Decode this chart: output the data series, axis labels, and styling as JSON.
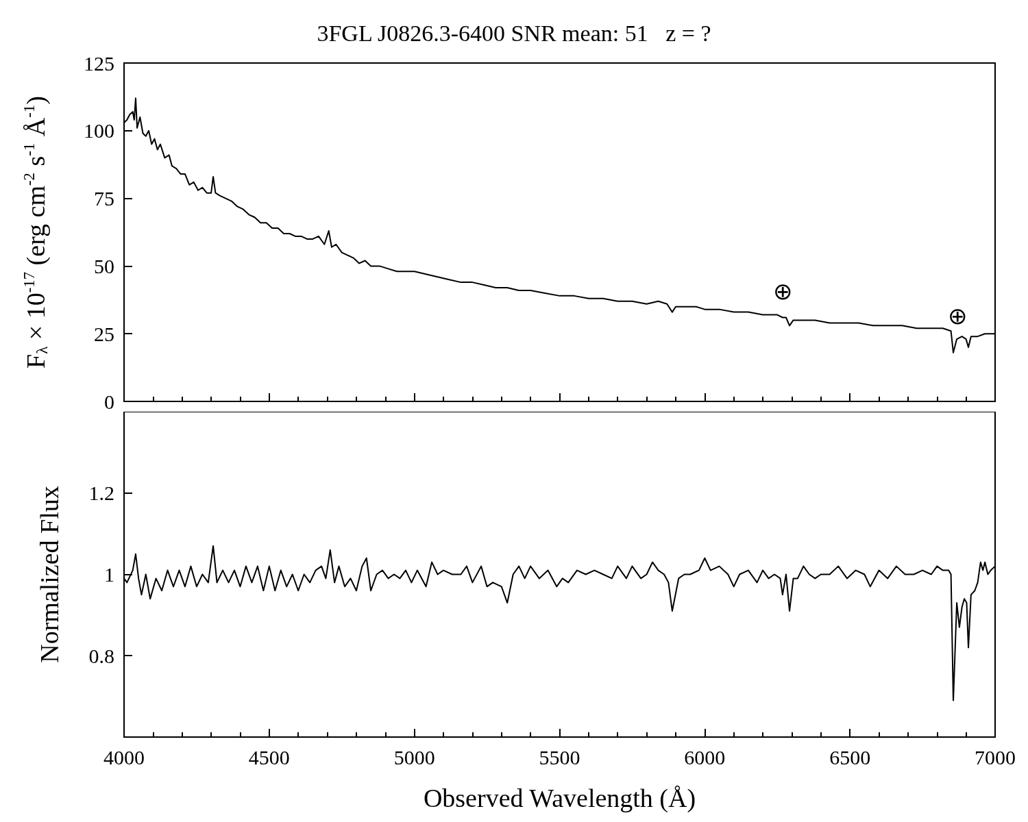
{
  "chart_data": [
    {
      "type": "line",
      "title": "3FGL J0826.3-6400 SNR mean: 51   z = ?",
      "ylabel": "F$_{λ}$ × 10$^{-17}$ (erg cm$^{-2}$ s$^{-1}$ Å$^{-1}$)",
      "xlim": [
        4000,
        7000
      ],
      "xticks": [
        4000,
        4500,
        5000,
        5500,
        6000,
        6500,
        7000
      ],
      "ylim": [
        0,
        125
      ],
      "yticks": [
        0,
        25,
        50,
        75,
        100,
        125
      ],
      "tick_labels": "y",
      "grid": false,
      "marker": "none",
      "line_style": "solid",
      "annotations": [
        "⊕",
        "⊕"
      ],
      "series": [
        {
          "color": "#000000",
          "x": [
            4000,
            4010,
            4020,
            4030,
            4035,
            4040,
            4045,
            4055,
            4065,
            4075,
            4085,
            4095,
            4105,
            4115,
            4125,
            4140,
            4155,
            4165,
            4180,
            4195,
            4210,
            4225,
            4240,
            4255,
            4270,
            4285,
            4300,
            4307,
            4315,
            4330,
            4350,
            4370,
            4390,
            4410,
            4430,
            4450,
            4470,
            4490,
            4510,
            4530,
            4550,
            4570,
            4590,
            4610,
            4630,
            4650,
            4670,
            4690,
            4705,
            4715,
            4730,
            4750,
            4770,
            4790,
            4810,
            4830,
            4850,
            4880,
            4910,
            4940,
            4970,
            5000,
            5040,
            5080,
            5120,
            5160,
            5200,
            5240,
            5280,
            5320,
            5360,
            5400,
            5450,
            5500,
            5550,
            5600,
            5650,
            5700,
            5750,
            5800,
            5840,
            5870,
            5888,
            5900,
            5930,
            5970,
            6000,
            6050,
            6100,
            6150,
            6200,
            6250,
            6268,
            6280,
            6292,
            6305,
            6330,
            6380,
            6430,
            6480,
            6530,
            6580,
            6630,
            6680,
            6730,
            6780,
            6820,
            6848,
            6856,
            6868,
            6886,
            6900,
            6908,
            6917,
            6940,
            6965,
            7000
          ],
          "values": [
            103,
            104,
            106,
            107,
            104,
            112,
            101,
            105,
            99,
            98,
            100,
            95,
            97,
            93,
            95,
            90,
            91,
            87,
            86,
            84,
            84,
            80,
            81,
            78,
            79,
            77,
            77,
            83,
            77,
            76,
            75,
            74,
            72,
            71,
            69,
            68,
            66,
            66,
            64,
            64,
            62,
            62,
            61,
            61,
            60,
            60,
            61,
            58,
            63,
            57,
            58,
            55,
            54,
            53,
            51,
            52,
            50,
            50,
            49,
            48,
            48,
            48,
            47,
            46,
            45,
            44,
            44,
            43,
            42,
            42,
            41,
            41,
            40,
            39,
            39,
            38,
            38,
            37,
            37,
            36,
            37,
            36,
            33,
            35,
            35,
            35,
            34,
            34,
            33,
            33,
            32,
            32,
            31,
            31,
            28,
            30,
            30,
            30,
            29,
            29,
            29,
            28,
            28,
            28,
            27,
            27,
            27,
            26,
            18,
            23,
            24,
            23,
            20,
            24,
            24,
            25,
            25
          ]
        }
      ]
    },
    {
      "type": "line",
      "xlabel": "Observed Wavelength (Å)",
      "ylabel": "Normalized Flux",
      "xlim": [
        4000,
        7000
      ],
      "xticks": [
        4000,
        4500,
        5000,
        5500,
        6000,
        6500,
        7000
      ],
      "ylim": [
        0.6,
        1.4
      ],
      "yticks": [
        0.8,
        1,
        1.2
      ],
      "grid": false,
      "marker": "none",
      "line_style": "solid",
      "series": [
        {
          "color": "#000000",
          "x": [
            4000,
            4010,
            4030,
            4040,
            4050,
            4060,
            4075,
            4090,
            4110,
            4130,
            4150,
            4170,
            4190,
            4210,
            4230,
            4250,
            4270,
            4290,
            4307,
            4320,
            4340,
            4360,
            4380,
            4400,
            4420,
            4440,
            4460,
            4480,
            4500,
            4520,
            4540,
            4560,
            4580,
            4600,
            4620,
            4640,
            4660,
            4680,
            4695,
            4710,
            4725,
            4740,
            4760,
            4780,
            4800,
            4820,
            4835,
            4850,
            4870,
            4890,
            4910,
            4930,
            4950,
            4970,
            4990,
            5010,
            5040,
            5060,
            5080,
            5100,
            5130,
            5160,
            5180,
            5200,
            5230,
            5250,
            5270,
            5300,
            5320,
            5340,
            5360,
            5380,
            5400,
            5430,
            5460,
            5490,
            5510,
            5530,
            5560,
            5590,
            5620,
            5650,
            5680,
            5700,
            5730,
            5750,
            5780,
            5800,
            5820,
            5840,
            5860,
            5875,
            5888,
            5910,
            5930,
            5950,
            5980,
            6000,
            6020,
            6050,
            6080,
            6100,
            6120,
            6150,
            6180,
            6200,
            6220,
            6240,
            6260,
            6268,
            6280,
            6292,
            6305,
            6320,
            6340,
            6360,
            6380,
            6400,
            6430,
            6460,
            6490,
            6520,
            6550,
            6570,
            6600,
            6630,
            6660,
            6690,
            6720,
            6750,
            6780,
            6800,
            6820,
            6840,
            6848,
            6856,
            6868,
            6877,
            6886,
            6894,
            6902,
            6908,
            6917,
            6930,
            6940,
            6950,
            6958,
            6965,
            6975,
            6985,
            7000
          ],
          "values": [
            0.99,
            0.98,
            1.01,
            1.05,
            0.99,
            0.95,
            1.0,
            0.94,
            0.99,
            0.96,
            1.01,
            0.97,
            1.01,
            0.97,
            1.02,
            0.97,
            1.0,
            0.98,
            1.07,
            0.98,
            1.01,
            0.98,
            1.01,
            0.97,
            1.02,
            0.98,
            1.02,
            0.96,
            1.02,
            0.96,
            1.01,
            0.97,
            1.0,
            0.96,
            1.0,
            0.98,
            1.01,
            1.02,
            0.99,
            1.06,
            0.98,
            1.02,
            0.97,
            0.99,
            0.96,
            1.02,
            1.04,
            0.96,
            1.0,
            1.01,
            0.99,
            1.0,
            0.99,
            1.01,
            0.98,
            1.01,
            0.97,
            1.03,
            1.0,
            1.01,
            1.0,
            1.0,
            1.02,
            0.98,
            1.02,
            0.97,
            0.98,
            0.97,
            0.93,
            1.0,
            1.02,
            0.99,
            1.02,
            0.99,
            1.01,
            0.97,
            0.99,
            0.98,
            1.01,
            1.0,
            1.01,
            1.0,
            0.99,
            1.02,
            0.99,
            1.02,
            0.99,
            1.0,
            1.03,
            1.01,
            1.0,
            0.98,
            0.91,
            0.99,
            1.0,
            1.0,
            1.01,
            1.04,
            1.01,
            1.02,
            1.0,
            0.97,
            1.0,
            1.01,
            0.98,
            1.01,
            0.99,
            1.0,
            0.99,
            0.95,
            1.0,
            0.91,
            0.99,
            0.99,
            1.02,
            1.0,
            0.99,
            1.0,
            1.0,
            1.02,
            0.99,
            1.01,
            1.0,
            0.97,
            1.01,
            0.99,
            1.02,
            1.0,
            1.0,
            1.01,
            1.0,
            1.02,
            1.01,
            1.01,
            1.0,
            0.69,
            0.93,
            0.87,
            0.92,
            0.94,
            0.93,
            0.82,
            0.95,
            0.96,
            0.98,
            1.03,
            1.01,
            1.03,
            1.0,
            1.01,
            1.02
          ]
        }
      ]
    }
  ]
}
